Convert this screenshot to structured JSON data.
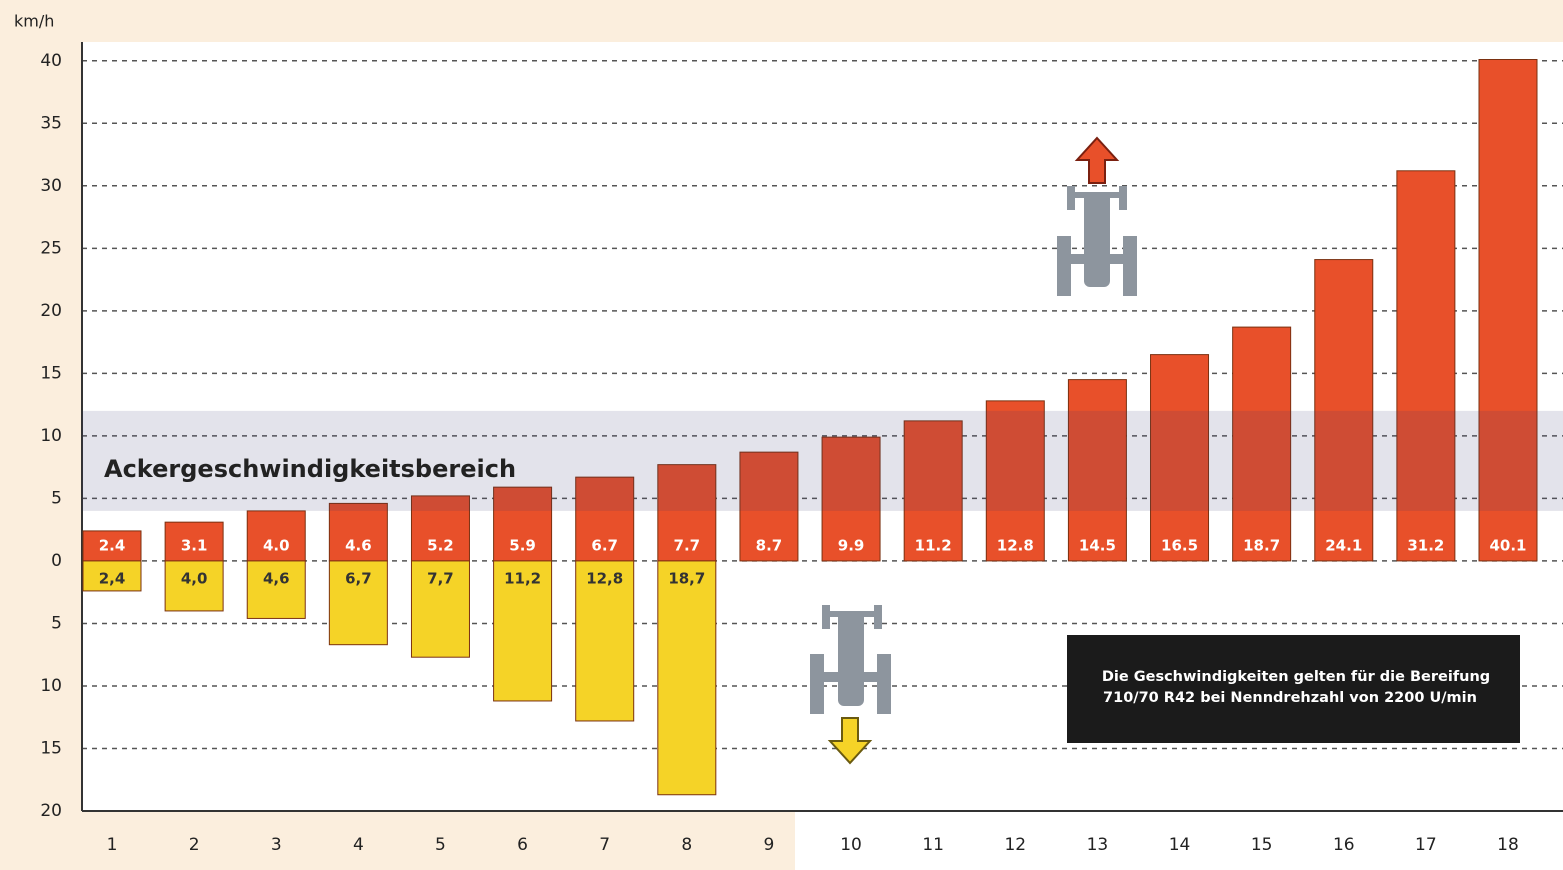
{
  "chart_data": {
    "type": "bar",
    "y_unit": "km/h",
    "categories": [
      "1",
      "2",
      "3",
      "4",
      "5",
      "6",
      "7",
      "8",
      "9",
      "10",
      "11",
      "12",
      "13",
      "14",
      "15",
      "16",
      "17",
      "18"
    ],
    "series": [
      {
        "name": "forward",
        "color": "#e8502a",
        "values": [
          2.4,
          3.1,
          4.0,
          4.6,
          5.2,
          5.9,
          6.7,
          7.7,
          8.7,
          9.9,
          11.2,
          12.8,
          14.5,
          16.5,
          18.7,
          24.1,
          31.2,
          40.1
        ],
        "value_labels": [
          "2.4",
          "3.1",
          "4.0",
          "4.6",
          "5.2",
          "5.9",
          "6.7",
          "7.7",
          "8.7",
          "9.9",
          "11.2",
          "12.8",
          "14.5",
          "16.5",
          "18.7",
          "24.1",
          "31.2",
          "40.1"
        ]
      },
      {
        "name": "reverse",
        "color": "#f5d327",
        "values": [
          -2.4,
          -4.0,
          -4.6,
          -6.7,
          -7.7,
          -11.2,
          -12.8,
          -18.7,
          null,
          null,
          null,
          null,
          null,
          null,
          null,
          null,
          null,
          null
        ],
        "value_labels": [
          "2,4",
          "4,0",
          "4,6",
          "6,7",
          "7,7",
          "11,2",
          "12,8",
          "18,7",
          null,
          null,
          null,
          null,
          null,
          null,
          null,
          null,
          null,
          null
        ]
      }
    ],
    "ylim": [
      -20,
      41.5
    ],
    "yticks": [
      {
        "value": -20,
        "label": "20"
      },
      {
        "value": -15,
        "label": "15"
      },
      {
        "value": -10,
        "label": "10"
      },
      {
        "value": -5,
        "label": "5"
      },
      0,
      5,
      10,
      15,
      20,
      25,
      30,
      35,
      40
    ],
    "grid": true,
    "band": {
      "label": "Ackergeschwindigkeitsbereich",
      "range": [
        4,
        12
      ]
    },
    "note": [
      "Die Geschwindigkeiten gelten für die Bereifung",
      "710/70 R42 bei Nenndrehzahl von 2200 U/min"
    ]
  }
}
